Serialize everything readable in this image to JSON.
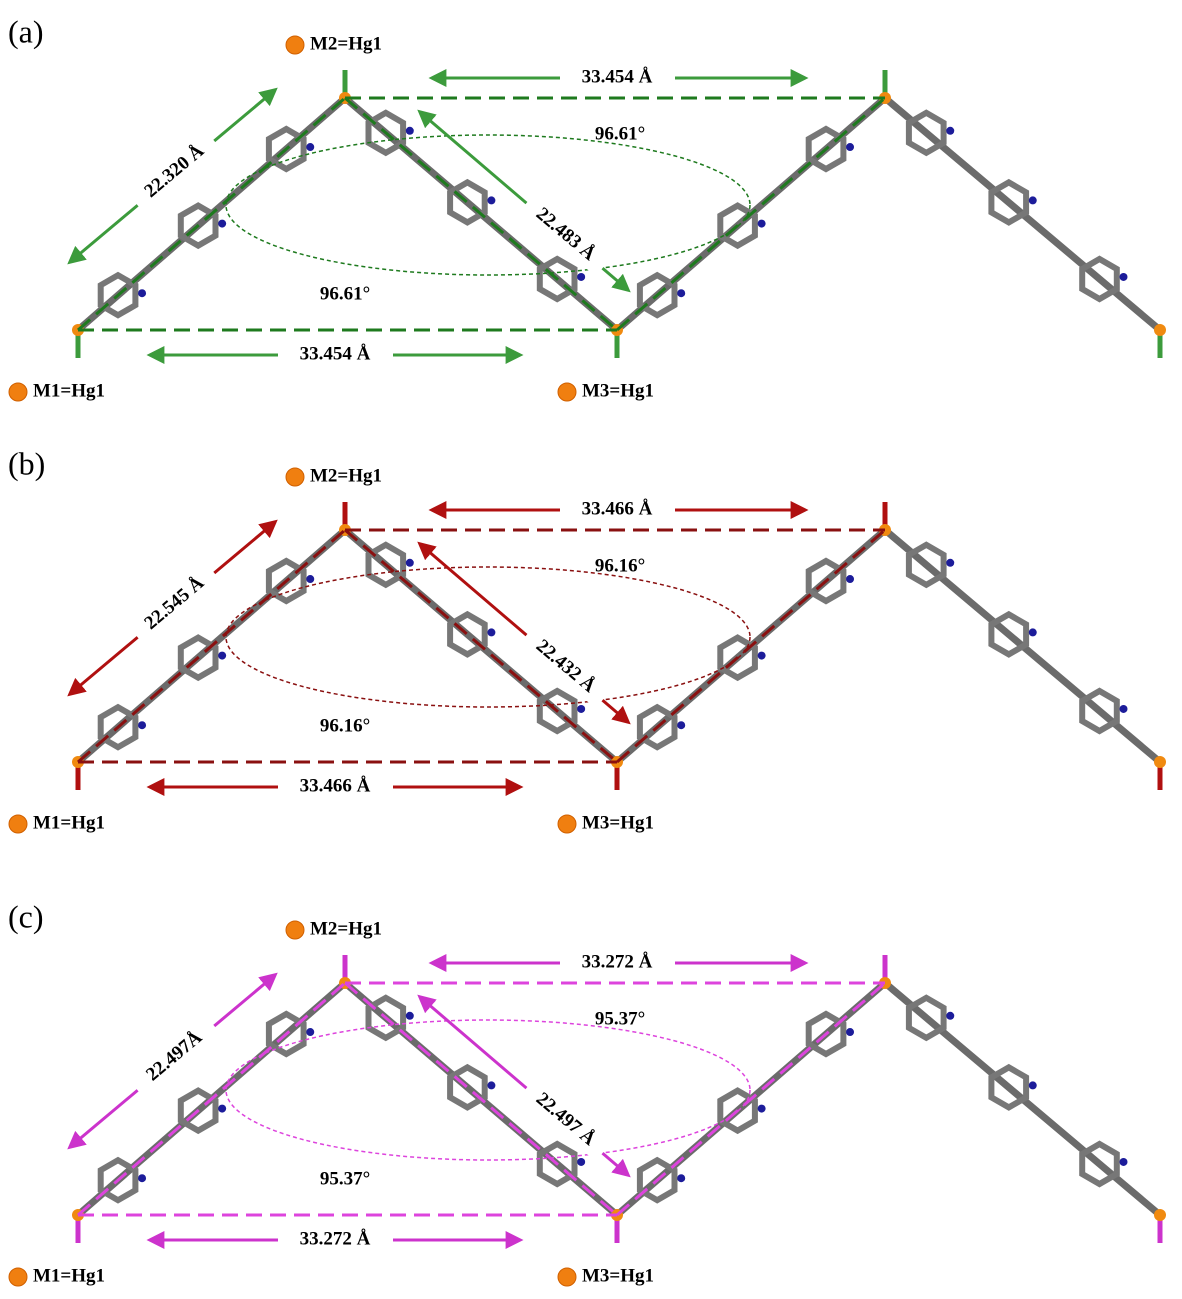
{
  "panels": [
    {
      "label": "(a)",
      "color": "#3c9b3c",
      "dash_color": "#1e7a1e",
      "m1": "M1=Hg1",
      "m2": "M2=Hg1",
      "m3": "M3=Hg1",
      "top_distance": "33.454 Å",
      "bottom_distance": "33.454 Å",
      "left_distance": "22.320 Å",
      "right_distance": "22.483 Å",
      "top_angle": "96.61°",
      "bottom_angle": "96.61°"
    },
    {
      "label": "(b)",
      "color": "#b01010",
      "dash_color": "#8a1010",
      "m1": "M1=Hg1",
      "m2": "M2=Hg1",
      "m3": "M3=Hg1",
      "top_distance": "33.466 Å",
      "bottom_distance": "33.466 Å",
      "left_distance": "22.545 Å",
      "right_distance": "22.432 Å",
      "top_angle": "96.16°",
      "bottom_angle": "96.16°"
    },
    {
      "label": "(c)",
      "color": "#cc33cc",
      "dash_color": "#dd44dd",
      "m1": "M1=Hg1",
      "m2": "M2=Hg1",
      "m3": "M3=Hg1",
      "top_distance": "33.272 Å",
      "bottom_distance": "33.272 Å",
      "left_distance": "22.497Å",
      "right_distance": "22.497 Å",
      "top_angle": "95.37°",
      "bottom_angle": "95.37°"
    }
  ]
}
